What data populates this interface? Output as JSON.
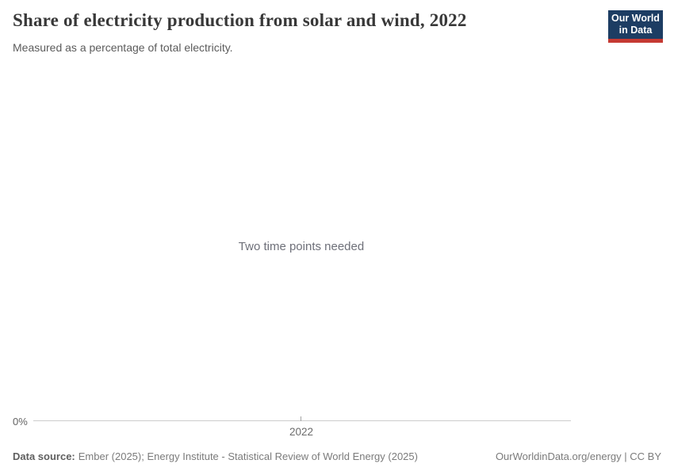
{
  "header": {
    "title": "Share of electricity production from solar and wind, 2022",
    "subtitle": "Measured as a percentage of total electricity."
  },
  "logo": {
    "line1": "Our World",
    "line2": "in Data",
    "bg_color": "#1d3d63",
    "accent_color": "#c53a33"
  },
  "chart_data": {
    "type": "line",
    "title": "Share of electricity production from solar and wind, 2022",
    "subtitle": "Measured as a percentage of total electricity.",
    "empty_state_message": "Two time points needed",
    "series": [],
    "x_ticks": [
      "2022"
    ],
    "y_ticks": [
      "0%"
    ],
    "grid": false,
    "legend": false,
    "axis_line_color": "#cccccc"
  },
  "footer": {
    "datasource_label": "Data source:",
    "datasource_value": "Ember (2025); Energy Institute - Statistical Review of World Energy (2025)",
    "attribution": "OurWorldinData.org/energy | CC BY"
  }
}
